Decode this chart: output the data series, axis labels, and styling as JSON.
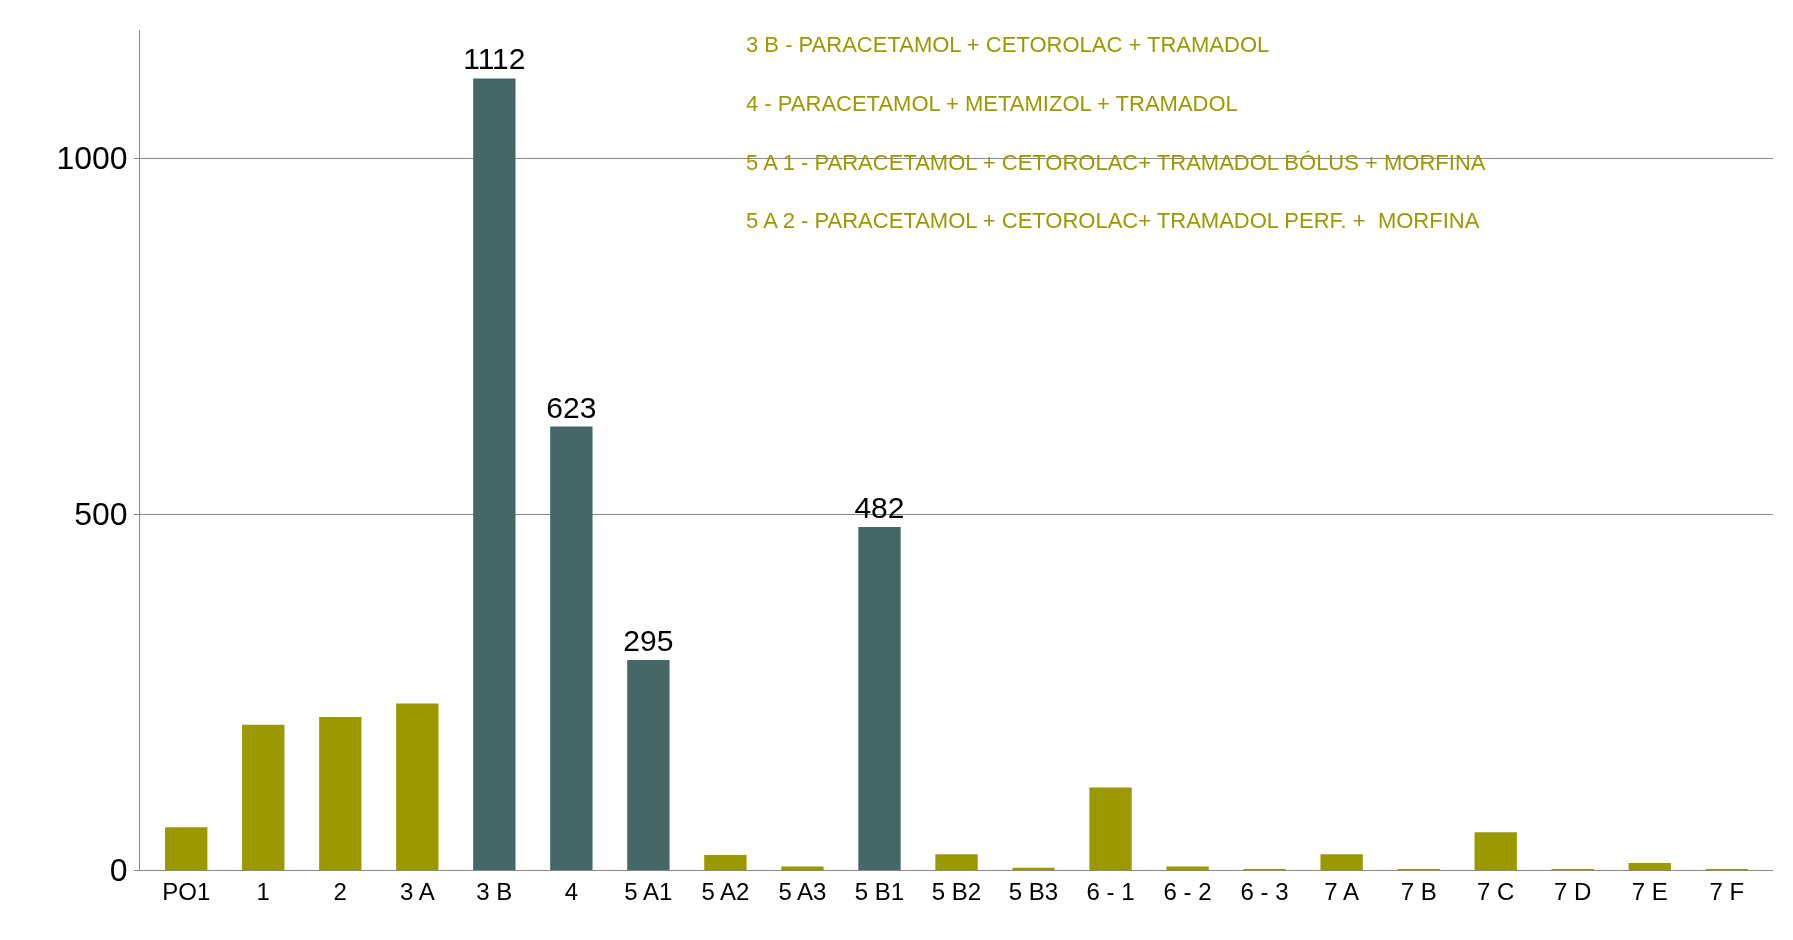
{
  "chart_data": {
    "type": "bar",
    "categories": [
      "PO1",
      "1",
      "2",
      "3 A",
      "3 B",
      "4",
      "5 A1",
      "5 A2",
      "5 A3",
      "5 B1",
      "5 B2",
      "5 B3",
      "6 - 1",
      "6 - 2",
      "6 - 3",
      "7 A",
      "7 B",
      "7 C",
      "7 D",
      "7 E",
      "7 F"
    ],
    "values": [
      60,
      204,
      215,
      234,
      1112,
      623,
      295,
      21,
      5,
      482,
      22,
      3,
      116,
      5,
      1,
      22,
      1,
      53,
      1,
      10,
      1
    ],
    "colors": [
      "#9a9a00",
      "#9a9a00",
      "#9a9a00",
      "#9a9a00",
      "#456766",
      "#456766",
      "#456766",
      "#9a9a00",
      "#9a9a00",
      "#456766",
      "#9a9a00",
      "#9a9a00",
      "#9a9a00",
      "#9a9a00",
      "#9a9a00",
      "#9a9a00",
      "#9a9a00",
      "#9a9a00",
      "#9a9a00",
      "#9a9a00",
      "#9a9a00"
    ],
    "value_labels": [
      null,
      null,
      null,
      null,
      "1112",
      "623",
      "295",
      null,
      null,
      "482",
      null,
      null,
      null,
      null,
      null,
      null,
      null,
      null,
      null,
      null,
      null
    ],
    "ylim": [
      0,
      1180
    ],
    "yticks": [
      0,
      500,
      1000
    ],
    "grid": "y",
    "annotations": [
      "3 B - PARACETAMOL + CETOROLAC + TRAMADOL",
      "4 - PARACETAMOL + METAMIZOL + TRAMADOL",
      "5 A 1 - PARACETAMOL + CETOROLAC+ TRAMADOL BÓLUS + MORFINA",
      "5 A 2 - PARACETAMOL + CETOROLAC+ TRAMADOL PERF. +  MORFINA"
    ]
  }
}
